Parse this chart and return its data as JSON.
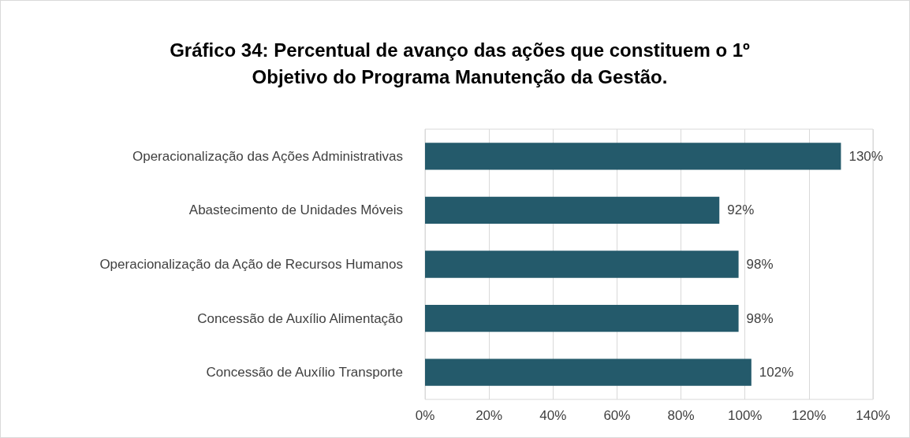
{
  "chart_data": {
    "type": "bar",
    "orientation": "horizontal",
    "title": "Gráfico 34: Percentual de avanço das ações que constituem o 1º\nObjetivo do Programa Manutenção da Gestão.",
    "categories": [
      "Operacionalização das Ações Administrativas",
      "Abastecimento de Unidades Móveis",
      "Operacionalização da Ação de Recursos Humanos",
      "Concessão de Auxílio Alimentação",
      "Concessão de Auxílio Transporte"
    ],
    "values": [
      130,
      92,
      98,
      98,
      102
    ],
    "value_labels": [
      "130%",
      "92%",
      "98%",
      "98%",
      "102%"
    ],
    "color": "#245a6b",
    "xlim": [
      0,
      140
    ],
    "xticks": [
      {
        "value": 0,
        "label": "0%"
      },
      {
        "value": 20,
        "label": "20%"
      },
      {
        "value": 40,
        "label": "40%"
      },
      {
        "value": 60,
        "label": "60%"
      },
      {
        "value": 80,
        "label": "80%"
      },
      {
        "value": 100,
        "label": "100%"
      },
      {
        "value": 120,
        "label": "120%"
      },
      {
        "value": 140,
        "label": "140%"
      }
    ],
    "grid": "x"
  }
}
